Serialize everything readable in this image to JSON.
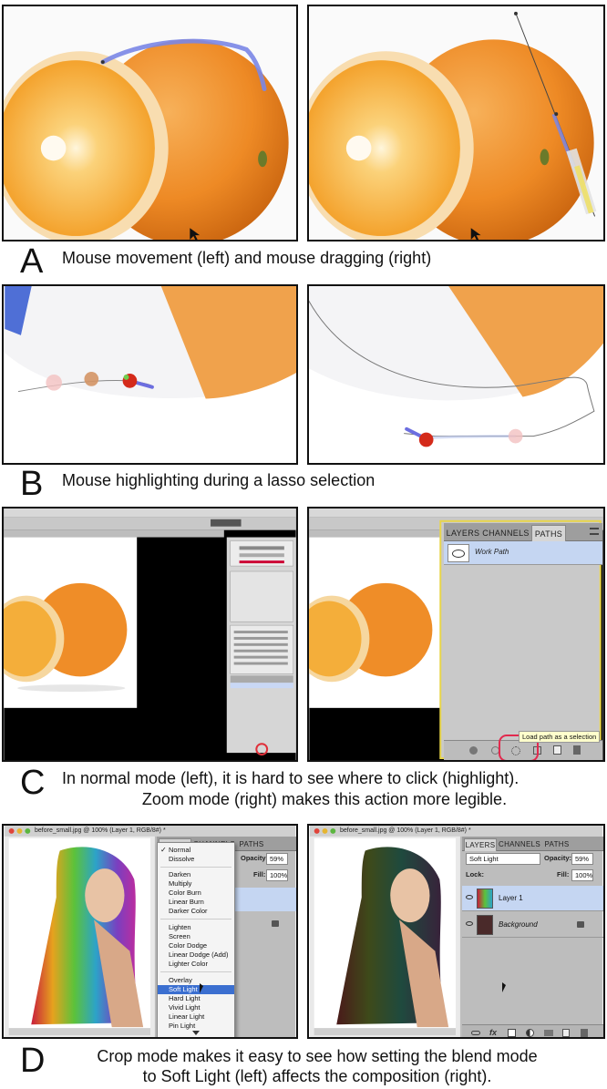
{
  "figure": {
    "panel_a": {
      "letter": "A",
      "caption": "Mouse movement (left) and mouse dragging (right)"
    },
    "panel_b": {
      "letter": "B",
      "caption": "Mouse highlighting during a lasso selection"
    },
    "panel_c": {
      "letter": "C",
      "caption_line1": "In normal mode (left), it is hard to see where to click (highlight).",
      "caption_line2": "Zoom mode (right) makes this action more legible.",
      "paths_panel": {
        "tabs": [
          "LAYERS",
          "CHANNELS",
          "PATHS"
        ],
        "path_name": "Work Path",
        "tooltip": "Load path as a selection"
      }
    },
    "panel_d": {
      "letter": "D",
      "caption_line1": "Crop mode makes it easy to see how setting the blend mode",
      "caption_line2": "to Soft Light (left) affects the composition (right).",
      "window_title": "before_small.jpg @ 100% (Layer 1, RGB/8#) *",
      "layers_panel": {
        "tabs": [
          "LAYERS",
          "CHANNELS",
          "PATHS"
        ],
        "opacity_label": "Opacity:",
        "opacity_value": "59%",
        "fill_label": "Fill:",
        "fill_value": "100%",
        "lock_label": "Lock:",
        "blend_mode": "Soft Light",
        "layers": [
          "Layer 1",
          "Background"
        ]
      },
      "blend_menu": {
        "groups": [
          [
            "Normal",
            "Dissolve"
          ],
          [
            "Darken",
            "Multiply",
            "Color Burn",
            "Linear Burn",
            "Darker Color"
          ],
          [
            "Lighten",
            "Screen",
            "Color Dodge",
            "Linear Dodge (Add)",
            "Lighter Color"
          ],
          [
            "Overlay",
            "Soft Light",
            "Hard Light",
            "Vivid Light",
            "Linear Light",
            "Pin Light"
          ]
        ],
        "checked": "Normal",
        "selected": "Soft Light"
      }
    }
  }
}
